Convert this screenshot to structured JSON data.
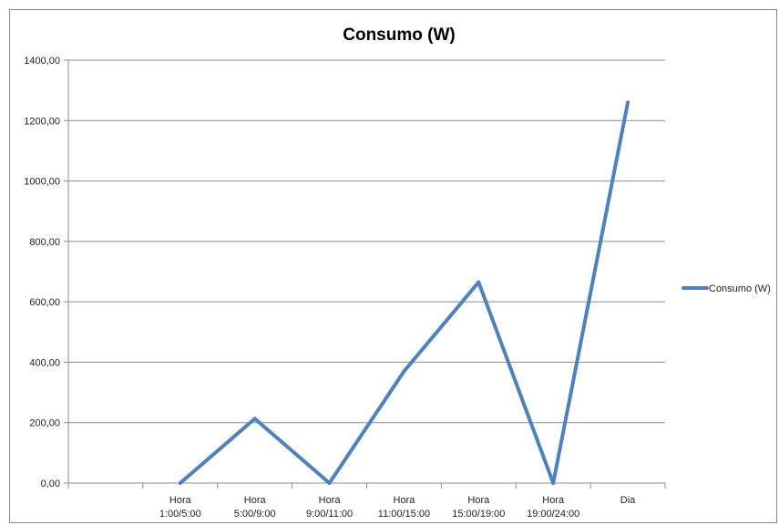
{
  "chart_data": {
    "type": "line",
    "title": "Consumo (W)",
    "xlabel": "",
    "ylabel": "",
    "categories": [
      [
        "",
        ""
      ],
      [
        "Hora",
        "1:00/5:00"
      ],
      [
        "Hora",
        "5:00/9:00"
      ],
      [
        "Hora",
        "9:00/11:00"
      ],
      [
        "Hora",
        "11:00/15:00"
      ],
      [
        "Hora",
        "15:00/19:00"
      ],
      [
        "Hora",
        "19:00/24:00"
      ],
      [
        "Dia",
        ""
      ]
    ],
    "series": [
      {
        "name": "Consumo (W)",
        "values": [
          null,
          0,
          213,
          0,
          370,
          665,
          0,
          1260
        ],
        "color": "#4f81bd"
      }
    ],
    "ylim": [
      0,
      1400
    ],
    "yticks": [
      "0,00",
      "200,00",
      "400,00",
      "600,00",
      "800,00",
      "1000,00",
      "1200,00",
      "1400,00"
    ],
    "grid": true,
    "legend": "right"
  }
}
